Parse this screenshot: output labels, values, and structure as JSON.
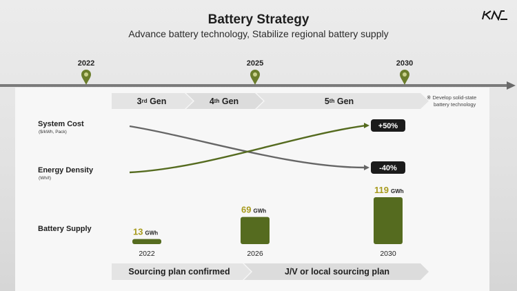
{
  "header": {
    "title": "Battery Strategy",
    "subtitle": "Advance battery technology, Stabilize regional battery supply",
    "logo": "KIA"
  },
  "timeline": {
    "years": [
      "2022",
      "2025",
      "2030"
    ]
  },
  "generations": [
    {
      "num": "3",
      "suffix": "rd",
      "word": "Gen"
    },
    {
      "num": "4",
      "suffix": "th",
      "word": "Gen"
    },
    {
      "num": "5",
      "suffix": "th",
      "word": "Gen"
    }
  ],
  "note": {
    "line1": "※ Develop solid-state",
    "line2": "battery technology"
  },
  "rows": {
    "cost": {
      "label": "System Cost",
      "unit": "($/kWh, Pack)"
    },
    "density": {
      "label": "Energy Density",
      "unit": "(Wh/ℓ)"
    },
    "supply": {
      "label": "Battery Supply"
    }
  },
  "sourcing": {
    "left": "Sourcing plan confirmed",
    "right": "J/V or local sourcing plan"
  },
  "colors": {
    "olive": "#556b1f",
    "olive_text": "#a79a1c",
    "gray_line": "#666666",
    "badge": "#1b1b1b"
  },
  "chart_data": [
    {
      "type": "line",
      "series": [
        {
          "name": "System Cost",
          "change": "-40%"
        },
        {
          "name": "Energy Density",
          "change": "+50%"
        }
      ]
    },
    {
      "type": "bar",
      "categories": [
        "2022",
        "2026",
        "2030"
      ],
      "values": [
        13,
        69,
        119
      ],
      "unit": "GWh",
      "ylabel": "Battery Supply"
    }
  ]
}
